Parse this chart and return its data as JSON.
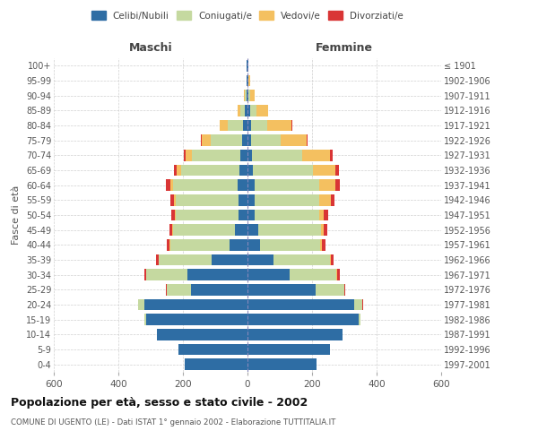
{
  "age_groups": [
    "0-4",
    "5-9",
    "10-14",
    "15-19",
    "20-24",
    "25-29",
    "30-34",
    "35-39",
    "40-44",
    "45-49",
    "50-54",
    "55-59",
    "60-64",
    "65-69",
    "70-74",
    "75-79",
    "80-84",
    "85-89",
    "90-94",
    "95-99",
    "100+"
  ],
  "birth_years": [
    "1997-2001",
    "1992-1996",
    "1987-1991",
    "1982-1986",
    "1977-1981",
    "1972-1976",
    "1967-1971",
    "1962-1966",
    "1957-1961",
    "1952-1956",
    "1947-1951",
    "1942-1946",
    "1937-1941",
    "1932-1936",
    "1927-1931",
    "1922-1926",
    "1917-1921",
    "1912-1916",
    "1907-1911",
    "1902-1906",
    "≤ 1901"
  ],
  "male_celibi": [
    195,
    215,
    280,
    315,
    320,
    175,
    185,
    110,
    55,
    40,
    28,
    28,
    30,
    25,
    22,
    18,
    15,
    8,
    3,
    2,
    2
  ],
  "male_coniugati": [
    0,
    0,
    0,
    5,
    20,
    75,
    130,
    165,
    185,
    190,
    195,
    195,
    200,
    180,
    150,
    95,
    45,
    15,
    5,
    2,
    1
  ],
  "male_vedovi": [
    0,
    0,
    0,
    0,
    0,
    0,
    0,
    1,
    1,
    2,
    3,
    5,
    10,
    15,
    20,
    30,
    25,
    8,
    2,
    0,
    0
  ],
  "male_divorziati": [
    0,
    0,
    0,
    0,
    0,
    2,
    5,
    8,
    10,
    10,
    10,
    12,
    12,
    8,
    5,
    2,
    2,
    0,
    0,
    0,
    0
  ],
  "female_celibi": [
    215,
    255,
    295,
    345,
    330,
    210,
    130,
    80,
    40,
    32,
    22,
    22,
    22,
    18,
    15,
    12,
    10,
    8,
    3,
    2,
    2
  ],
  "female_coniugati": [
    0,
    0,
    0,
    5,
    25,
    90,
    145,
    175,
    185,
    195,
    200,
    200,
    200,
    185,
    155,
    90,
    50,
    20,
    5,
    2,
    1
  ],
  "female_vedovi": [
    0,
    0,
    0,
    0,
    1,
    1,
    2,
    3,
    5,
    8,
    15,
    35,
    50,
    70,
    85,
    80,
    75,
    35,
    15,
    5,
    1
  ],
  "female_divorziati": [
    0,
    0,
    0,
    0,
    1,
    3,
    8,
    8,
    12,
    12,
    12,
    12,
    15,
    10,
    8,
    3,
    3,
    2,
    0,
    0,
    0
  ],
  "colors": {
    "celibi": "#2e6da4",
    "coniugati": "#c5d9a0",
    "vedovi": "#f4c060",
    "divorziati": "#d93535"
  },
  "title": "Popolazione per età, sesso e stato civile - 2002",
  "subtitle": "COMUNE DI UGENTO (LE) - Dati ISTAT 1° gennaio 2002 - Elaborazione TUTTITALIA.IT",
  "xlabel_left": "Maschi",
  "xlabel_right": "Femmine",
  "ylabel_left": "Fasce di età",
  "xlim": 600,
  "bg_color": "#ffffff",
  "grid_color": "#cccccc"
}
